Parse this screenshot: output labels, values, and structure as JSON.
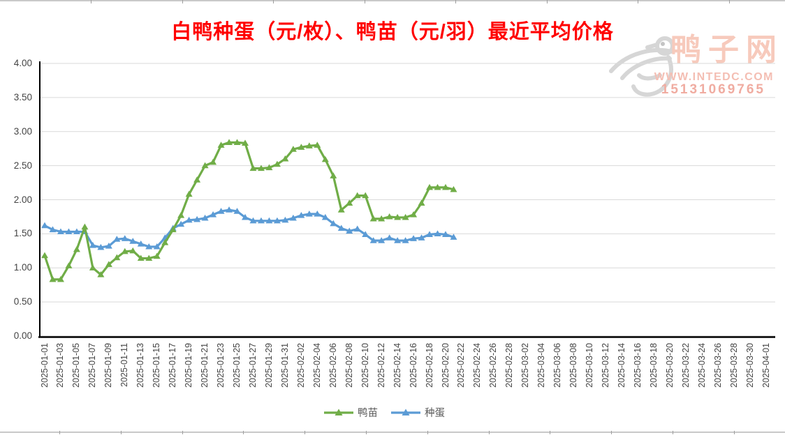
{
  "page": {
    "title": "白鸭种蛋（元/枚）、鸭苗（元/羽）最近平均价格",
    "title_color": "#FF0000"
  },
  "watermark": {
    "site_name": "鸭子网",
    "site_url": "WWW.INTEDC.COM",
    "phone": "15131069765",
    "logo_icon": "duck-logo",
    "text_color": "#F4BEB3",
    "logo_color": "#D6D6D6"
  },
  "chart_data": {
    "type": "line",
    "title": "白鸭种蛋（元/枚）、鸭苗（元/羽）最近平均价格",
    "ylim": [
      0,
      4
    ],
    "grid": true,
    "legend_position": "bottom",
    "colors": {
      "grid": "#D9D9D9",
      "axis": "#000000",
      "tick_text": "#444444"
    },
    "y_tick_labels": [
      "4.00",
      "3.50",
      "3.00",
      "2.50",
      "2.00",
      "1.50",
      "1.00",
      "0.50",
      "0.00"
    ],
    "x_tick_labels": [
      "2025-01-01",
      "2025-01-03",
      "2025-01-05",
      "2025-01-07",
      "2025-01-09",
      "2025-01-11",
      "2025-01-13",
      "2025-01-15",
      "2025-01-17",
      "2025-01-19",
      "2025-01-21",
      "2025-01-23",
      "2025-01-25",
      "2025-01-27",
      "2025-01-29",
      "2025-01-31",
      "2025-02-02",
      "2025-02-04",
      "2025-02-06",
      "2025-02-08",
      "2025-02-10",
      "2025-02-12",
      "2025-02-14",
      "2025-02-16",
      "2025-02-18",
      "2025-02-20",
      "2025-02-22",
      "2025-02-24",
      "2025-02-26",
      "2025-02-28",
      "2025-03-02",
      "2025-03-04",
      "2025-03-06",
      "2025-03-08",
      "2025-03-10",
      "2025-03-12",
      "2025-03-14",
      "2025-03-16",
      "2025-03-18",
      "2025-03-20",
      "2025-03-22",
      "2025-03-24",
      "2025-03-26",
      "2025-03-28",
      "2025-03-30",
      "2025-04-01"
    ],
    "dates": [
      "2025-01-01",
      "2025-01-02",
      "2025-01-03",
      "2025-01-04",
      "2025-01-05",
      "2025-01-06",
      "2025-01-07",
      "2025-01-08",
      "2025-01-09",
      "2025-01-10",
      "2025-01-11",
      "2025-01-12",
      "2025-01-13",
      "2025-01-14",
      "2025-01-15",
      "2025-01-16",
      "2025-01-17",
      "2025-01-18",
      "2025-01-19",
      "2025-01-20",
      "2025-01-21",
      "2025-01-22",
      "2025-01-23",
      "2025-01-24",
      "2025-01-25",
      "2025-01-26",
      "2025-01-27",
      "2025-01-28",
      "2025-01-29",
      "2025-01-30",
      "2025-01-31",
      "2025-02-01",
      "2025-02-02",
      "2025-02-03",
      "2025-02-04",
      "2025-02-05",
      "2025-02-06",
      "2025-02-07",
      "2025-02-08",
      "2025-02-09",
      "2025-02-10",
      "2025-02-11",
      "2025-02-12",
      "2025-02-13",
      "2025-02-14",
      "2025-02-15",
      "2025-02-16",
      "2025-02-17",
      "2025-02-18",
      "2025-02-19",
      "2025-02-20",
      "2025-02-21"
    ],
    "series": [
      {
        "name": "鸭苗",
        "unit": "元/羽",
        "color": "#70AD47",
        "marker": "triangle",
        "values": [
          1.18,
          0.83,
          0.83,
          1.03,
          1.27,
          1.6,
          1.0,
          0.9,
          1.05,
          1.15,
          1.24,
          1.25,
          1.14,
          1.14,
          1.17,
          1.37,
          1.56,
          1.77,
          2.08,
          2.29,
          2.5,
          2.55,
          2.8,
          2.84,
          2.84,
          2.83,
          2.46,
          2.46,
          2.47,
          2.52,
          2.6,
          2.74,
          2.77,
          2.79,
          2.8,
          2.59,
          2.35,
          1.85,
          1.95,
          2.06,
          2.06,
          1.72,
          1.72,
          1.75,
          1.74,
          1.74,
          1.78,
          1.95,
          2.18,
          2.18,
          2.18,
          2.15
        ]
      },
      {
        "name": "种蛋",
        "unit": "元/枚",
        "color": "#5B9BD5",
        "marker": "triangle",
        "values": [
          1.62,
          1.56,
          1.53,
          1.53,
          1.53,
          1.53,
          1.33,
          1.3,
          1.32,
          1.42,
          1.43,
          1.39,
          1.35,
          1.31,
          1.31,
          1.44,
          1.58,
          1.64,
          1.7,
          1.71,
          1.73,
          1.78,
          1.83,
          1.85,
          1.83,
          1.74,
          1.69,
          1.69,
          1.69,
          1.69,
          1.7,
          1.73,
          1.77,
          1.79,
          1.79,
          1.74,
          1.65,
          1.58,
          1.54,
          1.57,
          1.49,
          1.4,
          1.4,
          1.44,
          1.4,
          1.4,
          1.43,
          1.44,
          1.49,
          1.5,
          1.49,
          1.45
        ]
      }
    ]
  }
}
